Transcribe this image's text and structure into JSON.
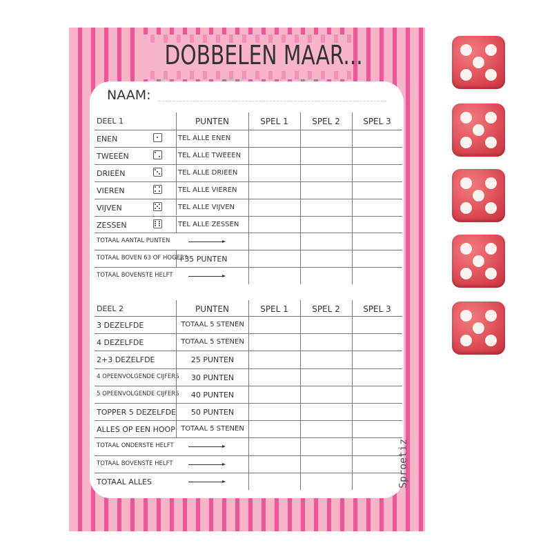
{
  "title": "DOBBELEN MAAR...",
  "naam_label": "NAAM:",
  "brand": "Sproetiz",
  "colors": {
    "stripe_dark": "#ef5597",
    "stripe_light": "#f8b4c9",
    "die": "#d9434c"
  },
  "columns": [
    "PUNTEN",
    "SPEL 1",
    "SPEL 2",
    "SPEL 3"
  ],
  "part1": {
    "header": "DEEL 1",
    "rows": [
      {
        "label": "ENEN",
        "face": 1,
        "punten": "TEL ALLE ENEN"
      },
      {
        "label": "TWEEËN",
        "face": 2,
        "punten": "TEL ALLE TWEEËN"
      },
      {
        "label": "DRIEËN",
        "face": 3,
        "punten": "TEL ALLE DRIEËN"
      },
      {
        "label": "VIEREN",
        "face": 4,
        "punten": "TEL ALLE VIEREN"
      },
      {
        "label": "VIJVEN",
        "face": 5,
        "punten": "TEL ALLE VIJVEN"
      },
      {
        "label": "ZESSEN",
        "face": 6,
        "punten": "TEL ALLE ZESSEN"
      },
      {
        "label": "TOTAAL AANTAL PUNTEN",
        "arrow": true
      },
      {
        "label": "TOTAAL BOVEN 63 OF HOGER?",
        "punten": "+35 PUNTEN"
      },
      {
        "label": "TOTAAL BOVENSTE HELFT",
        "arrow": true
      }
    ]
  },
  "part2": {
    "header": "DEEL 2",
    "rows": [
      {
        "label": "3 DEZELFDE",
        "punten": "TOTAAL 5 STENEN"
      },
      {
        "label": "4 DEZELFDE",
        "punten": "TOTAAL 5 STENEN"
      },
      {
        "label": "2+3  DEZELFDE",
        "punten": "25 PUNTEN"
      },
      {
        "label": "4 OPEENVOLGENDE CIJFERS",
        "punten": "30 PUNTEN"
      },
      {
        "label": "5 OPEENVOLGENDE CIJFERS",
        "punten": "40 PUNTEN"
      },
      {
        "label": "TOPPER 5 DEZELFDE",
        "punten": "50 PUNTEN"
      },
      {
        "label": "ALLES OP EEN HOOP",
        "punten": "TOTAAL 5 STENEN"
      },
      {
        "label": "TOTAAL ONDERSTE HELFT",
        "arrow": true
      },
      {
        "label": "TOTAAL BOVENSTE HELFT",
        "arrow": true
      },
      {
        "label": "TOTAAL ALLES",
        "arrow": true
      }
    ]
  },
  "dice": [
    5,
    5,
    5,
    5,
    5
  ]
}
